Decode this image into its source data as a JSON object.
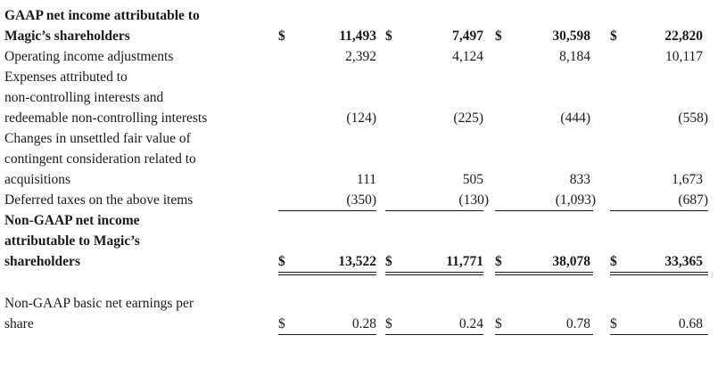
{
  "currency_symbol": "$",
  "rows": [
    {
      "label_lines": [
        "GAAP net income attributable to",
        "Magic’s shareholders"
      ],
      "bold": true,
      "values": [
        "11,493",
        "7,497",
        "30,598",
        "22,820"
      ]
    },
    {
      "label_lines": [
        "Operating income adjustments"
      ],
      "bold": false,
      "values": [
        "2,392",
        "4,124",
        "8,184",
        "10,117"
      ]
    },
    {
      "label_lines": [
        "Expenses attributed to",
        "non-controlling interests and",
        "redeemable non-controlling interests"
      ],
      "bold": false,
      "values": [
        "(124)",
        "(225)",
        "(444)",
        "(558)"
      ]
    },
    {
      "label_lines": [
        "Changes in unsettled fair value of",
        "contingent consideration related to",
        "acquisitions"
      ],
      "bold": false,
      "values": [
        "111",
        "505",
        "833",
        "1,673"
      ]
    },
    {
      "label_lines": [
        "Deferred taxes on the above items"
      ],
      "bold": false,
      "values": [
        "(350)",
        "(130)",
        "(1,093)",
        "(687)"
      ]
    },
    {
      "label_lines": [
        "Non-GAAP net income",
        "attributable to Magic’s",
        "shareholders"
      ],
      "bold": true,
      "values": [
        "13,522",
        "11,771",
        "38,078",
        "33,365"
      ]
    },
    {
      "label_lines": [
        "Non-GAAP basic net earnings per",
        "share"
      ],
      "bold": false,
      "values": [
        "0.28",
        "0.24",
        "0.78",
        "0.68"
      ]
    }
  ]
}
